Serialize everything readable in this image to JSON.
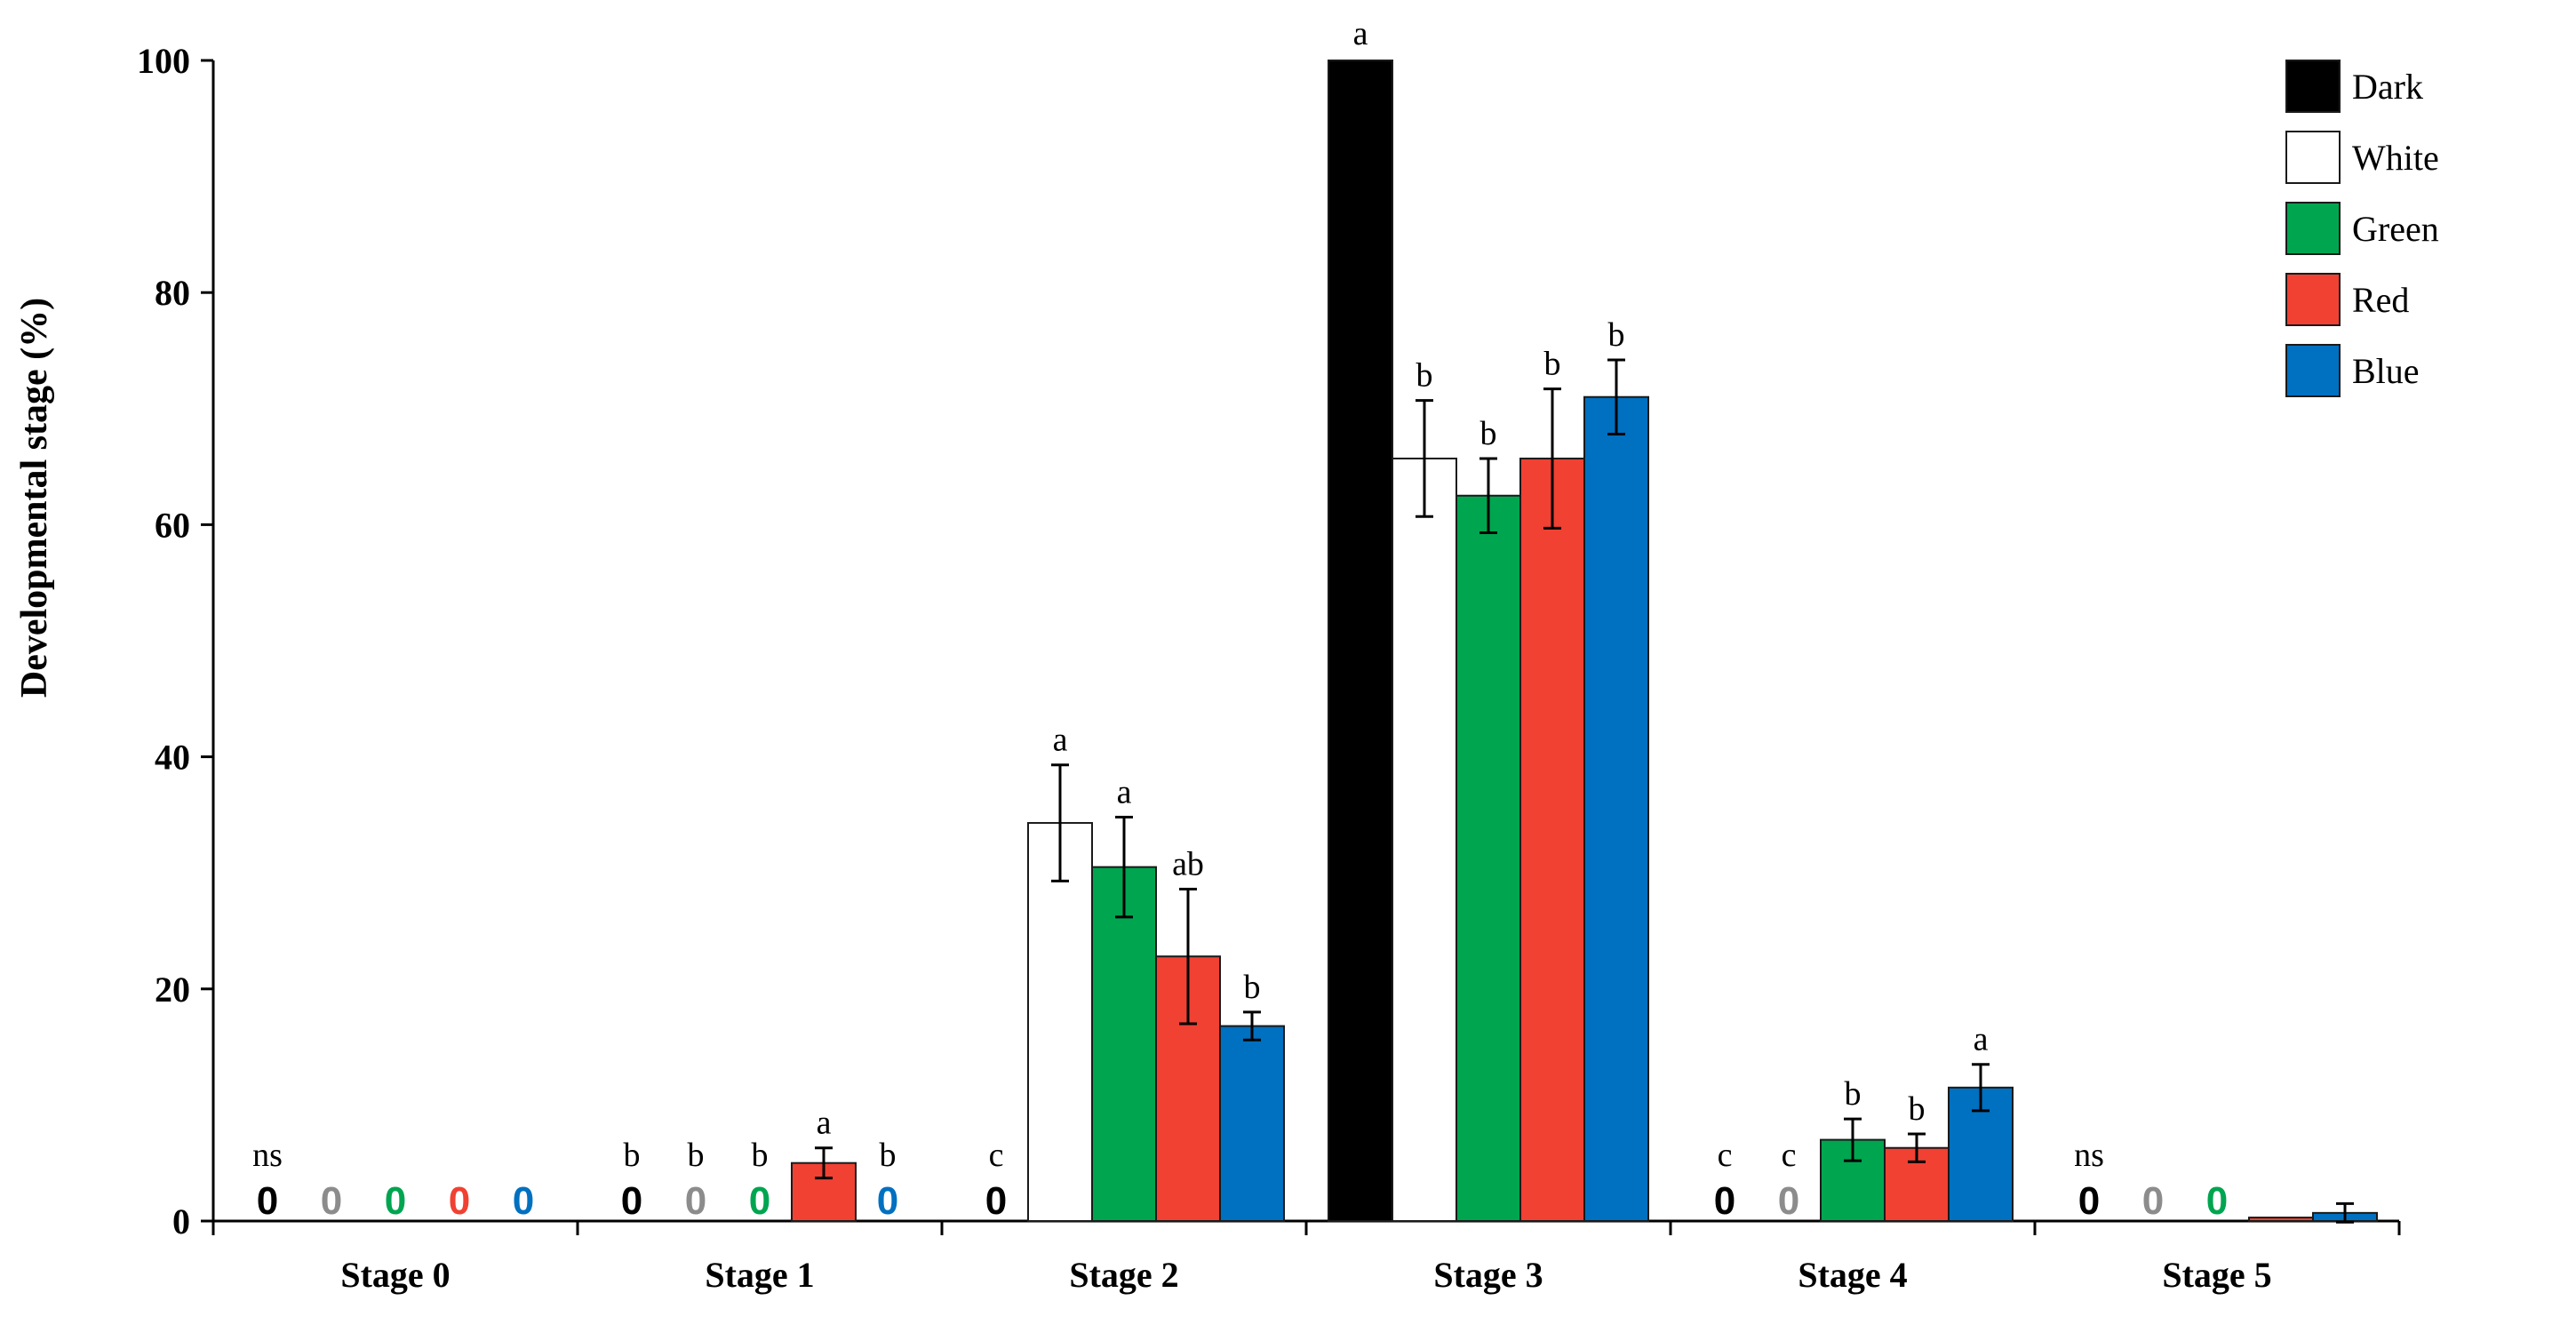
{
  "chart_data": {
    "type": "bar",
    "ylabel": "Developmental stage (%)",
    "xlabel": "",
    "ylim": [
      0,
      100
    ],
    "yticks": [
      0,
      20,
      40,
      60,
      80,
      100
    ],
    "grid": false,
    "legend_position": "top-right",
    "categories": [
      "Stage 0",
      "Stage 1",
      "Stage 2",
      "Stage 3",
      "Stage 4",
      "Stage 5"
    ],
    "series": [
      {
        "name": "Dark",
        "color": "#000000",
        "zero_color": "#000000",
        "values": [
          0,
          0,
          0,
          100,
          0,
          0
        ],
        "errors": [
          0,
          0,
          0,
          0,
          0,
          0
        ],
        "labels": [
          "ns",
          "b",
          "c",
          "a",
          "c",
          "ns"
        ],
        "zero_marks": [
          true,
          true,
          true,
          false,
          true,
          true
        ]
      },
      {
        "name": "White",
        "color": "#ffffff",
        "zero_color": "#8c8c8c",
        "values": [
          0,
          0,
          34.3,
          65.7,
          0,
          0
        ],
        "errors": [
          0,
          0,
          5.0,
          5.0,
          0,
          0
        ],
        "labels": [
          "",
          "b",
          "a",
          "b",
          "c",
          ""
        ],
        "zero_marks": [
          true,
          true,
          false,
          false,
          true,
          true
        ]
      },
      {
        "name": "Green",
        "color": "#00a550",
        "zero_color": "#00a550",
        "values": [
          0,
          0,
          30.5,
          62.5,
          7.0,
          0
        ],
        "errors": [
          0,
          0,
          4.3,
          3.2,
          1.8,
          0
        ],
        "labels": [
          "",
          "b",
          "a",
          "b",
          "b",
          ""
        ],
        "zero_marks": [
          true,
          true,
          false,
          false,
          false,
          true
        ]
      },
      {
        "name": "Red",
        "color": "#f04133",
        "zero_color": "#f04133",
        "values": [
          0,
          5.0,
          22.8,
          65.7,
          6.3,
          0.3
        ],
        "errors": [
          0,
          1.3,
          5.8,
          6.0,
          1.2,
          0
        ],
        "labels": [
          "",
          "a",
          "ab",
          "b",
          "b",
          ""
        ],
        "zero_marks": [
          true,
          false,
          false,
          false,
          false,
          false
        ]
      },
      {
        "name": "Blue",
        "color": "#0070c0",
        "zero_color": "#0070c0",
        "values": [
          0,
          0,
          16.8,
          71.0,
          11.5,
          0.7
        ],
        "errors": [
          0,
          0,
          1.2,
          3.2,
          2.0,
          0.8
        ],
        "labels": [
          "",
          "b",
          "b",
          "b",
          "a",
          ""
        ],
        "zero_marks": [
          true,
          true,
          false,
          false,
          false,
          false
        ]
      }
    ]
  }
}
